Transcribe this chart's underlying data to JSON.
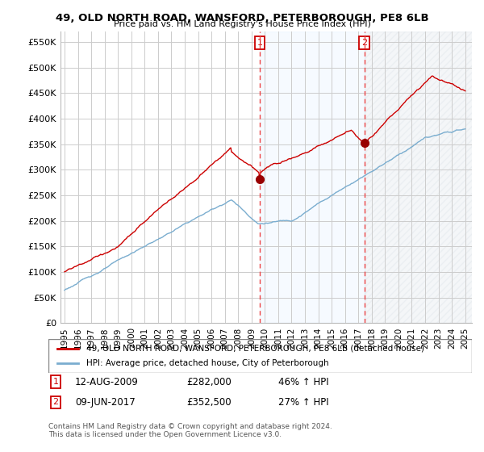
{
  "title": "49, OLD NORTH ROAD, WANSFORD, PETERBOROUGH, PE8 6LB",
  "subtitle": "Price paid vs. HM Land Registry's House Price Index (HPI)",
  "ylabel_ticks": [
    "£0",
    "£50K",
    "£100K",
    "£150K",
    "£200K",
    "£250K",
    "£300K",
    "£350K",
    "£400K",
    "£450K",
    "£500K",
    "£550K"
  ],
  "ytick_values": [
    0,
    50000,
    100000,
    150000,
    200000,
    250000,
    300000,
    350000,
    400000,
    450000,
    500000,
    550000
  ],
  "ylim": [
    0,
    570000
  ],
  "xlim_start": 1994.7,
  "xlim_end": 2025.5,
  "sale1_date": 2009.617,
  "sale1_price": 282000,
  "sale2_date": 2017.44,
  "sale2_price": 352500,
  "house_color": "#cc0000",
  "hpi_color": "#7aadcf",
  "marker_color": "#990000",
  "vline_color": "#ee4444",
  "shade_color": "#ddeeff",
  "legend_house": "49, OLD NORTH ROAD, WANSFORD, PETERBOROUGH, PE8 6LB (detached house)",
  "legend_hpi": "HPI: Average price, detached house, City of Peterborough",
  "footnote": "Contains HM Land Registry data © Crown copyright and database right 2024.\nThis data is licensed under the Open Government Licence v3.0.",
  "bg_color": "#ffffff",
  "grid_color": "#cccccc"
}
